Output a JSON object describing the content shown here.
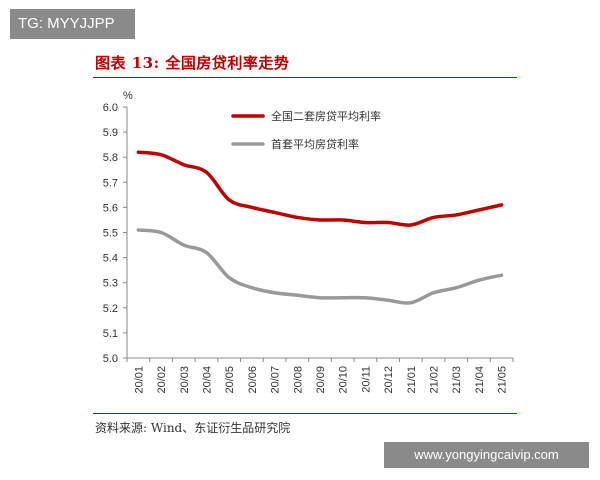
{
  "watermarks": {
    "top_left": "TG: MYYJJPP",
    "bottom_right": "www.yongyingcaivip.com"
  },
  "figure": {
    "title": "图表 13:  全国房贷利率走势",
    "source": "资料来源:  Wind、东证衍生品研究院"
  },
  "colors": {
    "accent": "#c00000",
    "series_1": "#c00000",
    "series_2": "#999999",
    "axis": "#888888"
  },
  "chart_data": {
    "type": "line",
    "title": "",
    "xlabel": "",
    "ylabel": "%",
    "ylim": [
      5.0,
      6.0
    ],
    "yticks": [
      "6.0",
      "5.9",
      "5.8",
      "5.7",
      "5.6",
      "5.5",
      "5.4",
      "5.3",
      "5.2",
      "5.1",
      "5.0"
    ],
    "grid": false,
    "legend": "top-left",
    "categories": [
      "20/01",
      "20/02",
      "20/03",
      "20/04",
      "20/05",
      "20/06",
      "20/07",
      "20/08",
      "20/09",
      "20/10",
      "20/11",
      "20/12",
      "21/01",
      "21/02",
      "21/03",
      "21/04",
      "21/05"
    ],
    "series": [
      {
        "name": "全国二套房贷平均利率",
        "color": "#c00000",
        "values": [
          5.82,
          5.81,
          5.77,
          5.74,
          5.63,
          5.6,
          5.58,
          5.56,
          5.55,
          5.55,
          5.54,
          5.54,
          5.53,
          5.56,
          5.57,
          5.59,
          5.61
        ]
      },
      {
        "name": "首套平均房贷利率",
        "color": "#999999",
        "values": [
          5.51,
          5.5,
          5.45,
          5.42,
          5.32,
          5.28,
          5.26,
          5.25,
          5.24,
          5.24,
          5.24,
          5.23,
          5.22,
          5.26,
          5.28,
          5.31,
          5.33
        ]
      }
    ]
  }
}
